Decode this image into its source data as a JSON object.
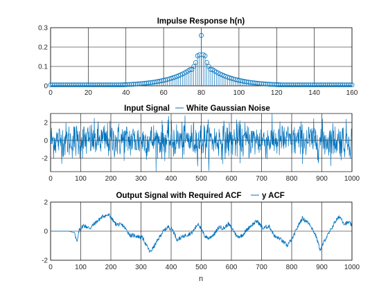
{
  "colors": {
    "series": "#0072BD",
    "axis": "#262626",
    "grid": "#000000",
    "background": "#ffffff"
  },
  "chart_data": [
    {
      "id": "impulse",
      "type": "stem",
      "title": "Impulse Response h(n)",
      "xlabel": "",
      "xlim": [
        0,
        160
      ],
      "ylim": [
        0,
        0.3
      ],
      "xticks": [
        0,
        20,
        40,
        60,
        80,
        100,
        120,
        140,
        160
      ],
      "yticks": [
        0,
        0.1,
        0.2,
        0.3
      ],
      "xtick_labels": [
        "0",
        "20",
        "40",
        "60",
        "80",
        "100",
        "120",
        "140",
        "160"
      ],
      "ytick_labels": [
        "0",
        "0.1",
        "0.2",
        "0.3"
      ],
      "grid": true,
      "marker": "circle",
      "shape": "two-sided decay, peak at n = 80",
      "center": 80,
      "peak_value": 0.26,
      "neighbor_values": [
        0.16,
        0.155,
        0.12,
        0.1,
        0.085
      ],
      "tail_value": 0.005
    },
    {
      "id": "input",
      "type": "line",
      "title": "Input Signal",
      "legend": [
        "White Gaussian Noise"
      ],
      "xlabel": "",
      "xlim": [
        0,
        1000
      ],
      "ylim": [
        -3.5,
        3
      ],
      "xticks": [
        0,
        100,
        200,
        300,
        400,
        500,
        600,
        700,
        800,
        900,
        1000
      ],
      "yticks": [
        -2,
        0,
        2
      ],
      "xtick_labels": [
        "0",
        "100",
        "200",
        "300",
        "400",
        "500",
        "600",
        "700",
        "800",
        "900",
        "1000"
      ],
      "ytick_labels": [
        "-2",
        "0",
        "2"
      ],
      "grid": true,
      "n_samples": 1000,
      "mean": 0,
      "std": 1
    },
    {
      "id": "output",
      "type": "line",
      "title": "Output Signal with Required ACF",
      "legend": [
        "y ACF"
      ],
      "xlabel": "n",
      "xlim": [
        0,
        1000
      ],
      "ylim": [
        -2,
        2
      ],
      "xticks": [
        0,
        100,
        200,
        300,
        400,
        500,
        600,
        700,
        800,
        900,
        1000
      ],
      "yticks": [
        -2,
        0,
        2
      ],
      "xtick_labels": [
        "0",
        "100",
        "200",
        "300",
        "400",
        "500",
        "600",
        "700",
        "800",
        "900",
        "1000"
      ],
      "ytick_labels": [
        "-2",
        "0",
        "2"
      ],
      "grid": true,
      "n_samples": 1000,
      "flat_until": 80,
      "values_at": [
        [
          0,
          0
        ],
        [
          60,
          0
        ],
        [
          80,
          -0.1
        ],
        [
          88,
          -0.8
        ],
        [
          95,
          0.1
        ],
        [
          110,
          0.4
        ],
        [
          130,
          0.2
        ],
        [
          150,
          0.6
        ],
        [
          175,
          1.05
        ],
        [
          195,
          1.1
        ],
        [
          215,
          0.5
        ],
        [
          240,
          0.4
        ],
        [
          265,
          -0.3
        ],
        [
          280,
          -0.3
        ],
        [
          305,
          -0.45
        ],
        [
          330,
          -1.45
        ],
        [
          345,
          -1.0
        ],
        [
          370,
          -0.1
        ],
        [
          390,
          0.3
        ],
        [
          405,
          0.1
        ],
        [
          420,
          -0.6
        ],
        [
          445,
          -0.3
        ],
        [
          470,
          -0.1
        ],
        [
          490,
          0.55
        ],
        [
          510,
          -0.3
        ],
        [
          525,
          -0.5
        ],
        [
          545,
          -0.15
        ],
        [
          560,
          0.3
        ],
        [
          575,
          0.2
        ],
        [
          590,
          0.5
        ],
        [
          605,
          0.1
        ],
        [
          620,
          -0.4
        ],
        [
          635,
          -0.3
        ],
        [
          660,
          0.3
        ],
        [
          685,
          0.7
        ],
        [
          705,
          0.2
        ],
        [
          725,
          0.35
        ],
        [
          745,
          -0.4
        ],
        [
          760,
          -0.5
        ],
        [
          785,
          -1.0
        ],
        [
          805,
          -0.4
        ],
        [
          820,
          0.3
        ],
        [
          835,
          0.9
        ],
        [
          860,
          0.5
        ],
        [
          880,
          -0.3
        ],
        [
          895,
          -1.3
        ],
        [
          910,
          -0.6
        ],
        [
          925,
          -0.1
        ],
        [
          945,
          0.7
        ],
        [
          960,
          1.0
        ],
        [
          975,
          0.5
        ],
        [
          990,
          0.6
        ],
        [
          1000,
          0.4
        ]
      ]
    }
  ]
}
